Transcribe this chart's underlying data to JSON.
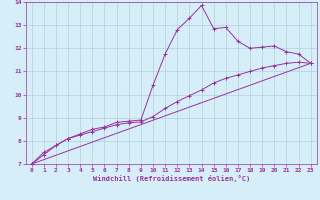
{
  "xlabel": "Windchill (Refroidissement éolien,°C)",
  "xlim": [
    -0.5,
    23.5
  ],
  "ylim": [
    7,
    14
  ],
  "xticks": [
    0,
    1,
    2,
    3,
    4,
    5,
    6,
    7,
    8,
    9,
    10,
    11,
    12,
    13,
    14,
    15,
    16,
    17,
    18,
    19,
    20,
    21,
    22,
    23
  ],
  "yticks": [
    7,
    8,
    9,
    10,
    11,
    12,
    13,
    14
  ],
  "bg_color": "#d6eef8",
  "line_color": "#993399",
  "grid_color": "#b0c8d8",
  "curve1_x": [
    0,
    1,
    2,
    3,
    4,
    5,
    6,
    7,
    8,
    9,
    10,
    11,
    12,
    13,
    14,
    15,
    16,
    17,
    18,
    19,
    20,
    21,
    22,
    23
  ],
  "curve1_y": [
    7.0,
    7.5,
    7.8,
    8.1,
    8.3,
    8.5,
    8.6,
    8.8,
    8.85,
    8.9,
    10.4,
    11.75,
    12.8,
    13.3,
    13.85,
    12.85,
    12.9,
    12.3,
    12.0,
    12.05,
    12.1,
    11.85,
    11.75,
    11.35
  ],
  "curve2_x": [
    0,
    1,
    2,
    3,
    4,
    5,
    6,
    7,
    8,
    9,
    10,
    11,
    12,
    13,
    14,
    15,
    16,
    17,
    18,
    19,
    20,
    21,
    22,
    23
  ],
  "curve2_y": [
    7.0,
    7.4,
    7.8,
    8.1,
    8.25,
    8.4,
    8.55,
    8.7,
    8.78,
    8.82,
    9.05,
    9.4,
    9.7,
    9.95,
    10.2,
    10.5,
    10.7,
    10.85,
    11.0,
    11.15,
    11.25,
    11.35,
    11.4,
    11.35
  ],
  "curve3_x": [
    0,
    23
  ],
  "curve3_y": [
    7.0,
    11.35
  ],
  "tick_fontsize": 4.5,
  "xlabel_fontsize": 5.0,
  "marker_size": 2.5,
  "line_width": 0.7
}
